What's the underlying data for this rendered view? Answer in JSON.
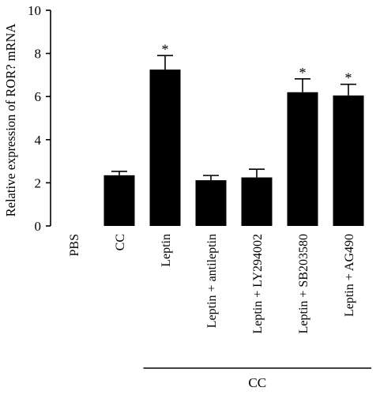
{
  "chart_data": {
    "type": "bar",
    "ylabel": "Relative expression of ROR? mRNA",
    "ylim": [
      0,
      10
    ],
    "yticks": [
      0,
      2,
      4,
      6,
      8,
      10
    ],
    "categories": [
      "PBS",
      "CC",
      "Leptin",
      "Leptin + antileptin",
      "Leptin + LY294002",
      "Leptin + SB203580",
      "Leptin + AG490"
    ],
    "values": [
      0,
      2.35,
      7.25,
      2.12,
      2.25,
      6.2,
      6.05
    ],
    "errors": [
      0,
      0.18,
      0.65,
      0.22,
      0.38,
      0.62,
      0.52
    ],
    "significance": [
      "",
      "",
      "*",
      "",
      "",
      "*",
      "*"
    ],
    "group_bracket": {
      "label": "CC",
      "from_category": 2,
      "to_category": 6
    },
    "bar_color": "#000000",
    "grid": false
  }
}
